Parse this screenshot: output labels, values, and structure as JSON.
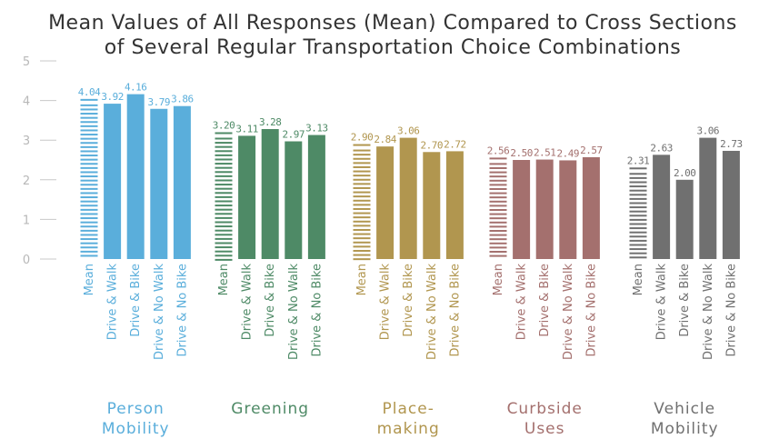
{
  "chart_data": {
    "type": "bar",
    "title_lines": [
      "Mean Values of All Responses (Mean) Compared to Cross Sections",
      "of Several Regular Transportation Choice Combinations"
    ],
    "xlabel": "",
    "ylabel": "",
    "ylim": [
      0,
      5
    ],
    "yticks": [
      "0",
      "1",
      "2",
      "3",
      "4",
      "5"
    ],
    "grid": false,
    "legend": "none",
    "categories": [
      "Mean",
      "Drive & Walk",
      "Drive & Bike",
      "Drive & No Walk",
      "Drive & No Bike"
    ],
    "groups": [
      {
        "name_lines": [
          "Person",
          "Mobility"
        ],
        "color": "#5aaedb",
        "values": [
          4.04,
          3.92,
          4.16,
          3.79,
          3.86
        ],
        "labels": [
          "4.04",
          "3.92",
          "4.16",
          "3.79",
          "3.86"
        ]
      },
      {
        "name_lines": [
          "Greening",
          ""
        ],
        "color": "#4e8a66",
        "values": [
          3.2,
          3.11,
          3.28,
          2.97,
          3.13
        ],
        "labels": [
          "3.20",
          "3.11",
          "3.28",
          "2.97",
          "3.13"
        ]
      },
      {
        "name_lines": [
          "Place-",
          "making"
        ],
        "color": "#b1964f",
        "values": [
          2.9,
          2.84,
          3.06,
          2.7,
          2.72
        ],
        "labels": [
          "2.90",
          "2.84",
          "3.06",
          "2.70",
          "2.72"
        ]
      },
      {
        "name_lines": [
          "Curbside",
          "Uses"
        ],
        "color": "#a4706e",
        "values": [
          2.56,
          2.5,
          2.51,
          2.49,
          2.57
        ],
        "labels": [
          "2.56",
          "2.50",
          "2.51",
          "2.49",
          "2.57"
        ]
      },
      {
        "name_lines": [
          "Vehicle",
          "Mobility"
        ],
        "color": "#707070",
        "values": [
          2.31,
          2.63,
          2.0,
          3.06,
          2.73
        ],
        "labels": [
          "2.31",
          "2.63",
          "2.00",
          "3.06",
          "2.73"
        ]
      }
    ]
  }
}
